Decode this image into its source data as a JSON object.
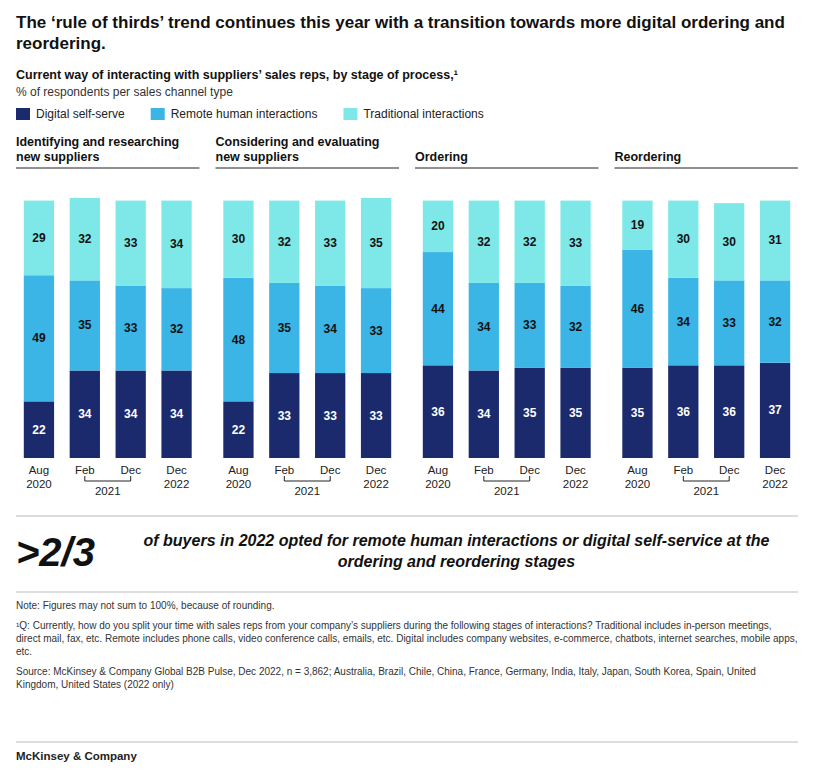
{
  "title": "The ‘rule of thirds’ trend continues this year with a transition towards more digital ordering and reordering.",
  "subtitle": "Current way of interacting with suppliers’ sales reps, by stage of process,¹",
  "annotations": [
    "% of respondents per sales channel type",
    ">2/3",
    "of buyers in 2022 opted for remote human interactions or digital self-service at the ordering and reordering stages",
    "Note: Figures may not sum to 100%, because of rounding.",
    "¹Q: Currently, how do you split your time with sales reps from your company’s suppliers during the following stages of interactions? Traditional includes in-person meetings, direct mail, fax, etc. Remote includes phone calls, video conference calls, emails, etc. Digital includes company websites, e-commerce, chatbots, internet searches, mobile apps, etc.",
    "Source: McKinsey & Company Global B2B Pulse, Dec 2022, n = 3,862; Australia, Brazil, Chile, China, France, Germany, India, Italy, Japan, South Korea, Spain, United Kingdom, United States (2022 only)",
    "McKinsey & Company"
  ],
  "chart_data": [
    {
      "type": "bar",
      "stacked": true,
      "data_labels": true,
      "tick_labels": "x",
      "title": "Identifying and researching new suppliers",
      "categories": [
        "Aug 2020",
        "Feb",
        "Dec",
        "Dec 2022"
      ],
      "annotations": [
        "2021"
      ],
      "ylim": [
        0,
        108
      ],
      "series": [
        {
          "name": "Digital self-serve",
          "color": "#1a2a6c",
          "values": [
            22,
            34,
            34,
            34
          ]
        },
        {
          "name": "Remote human interactions",
          "color": "#3ab5e5",
          "values": [
            49,
            35,
            33,
            32
          ]
        },
        {
          "name": "Traditional interactions",
          "color": "#7ee8e8",
          "values": [
            29,
            32,
            33,
            34
          ]
        }
      ]
    },
    {
      "type": "bar",
      "stacked": true,
      "data_labels": true,
      "tick_labels": "x",
      "title": "Considering and evaluating new suppliers",
      "categories": [
        "Aug 2020",
        "Feb",
        "Dec",
        "Dec 2022"
      ],
      "annotations": [
        "2021"
      ],
      "ylim": [
        0,
        108
      ],
      "series": [
        {
          "name": "Digital self-serve",
          "color": "#1a2a6c",
          "values": [
            22,
            33,
            33,
            33
          ]
        },
        {
          "name": "Remote human interactions",
          "color": "#3ab5e5",
          "values": [
            48,
            35,
            34,
            33
          ]
        },
        {
          "name": "Traditional interactions",
          "color": "#7ee8e8",
          "values": [
            30,
            32,
            33,
            35
          ]
        }
      ]
    },
    {
      "type": "bar",
      "stacked": true,
      "data_labels": true,
      "tick_labels": "x",
      "title": "Ordering",
      "categories": [
        "Aug 2020",
        "Feb",
        "Dec",
        "Dec 2022"
      ],
      "annotations": [
        "2021"
      ],
      "ylim": [
        0,
        108
      ],
      "series": [
        {
          "name": "Digital self-serve",
          "color": "#1a2a6c",
          "values": [
            36,
            34,
            35,
            35
          ]
        },
        {
          "name": "Remote human interactions",
          "color": "#3ab5e5",
          "values": [
            44,
            34,
            33,
            32
          ]
        },
        {
          "name": "Traditional interactions",
          "color": "#7ee8e8",
          "values": [
            20,
            32,
            32,
            33
          ]
        }
      ]
    },
    {
      "type": "bar",
      "stacked": true,
      "data_labels": true,
      "tick_labels": "x",
      "title": "Reordering",
      "categories": [
        "Aug 2020",
        "Feb",
        "Dec",
        "Dec 2022"
      ],
      "annotations": [
        "2021"
      ],
      "ylim": [
        0,
        108
      ],
      "series": [
        {
          "name": "Digital self-serve",
          "color": "#1a2a6c",
          "values": [
            35,
            36,
            36,
            37
          ]
        },
        {
          "name": "Remote human interactions",
          "color": "#3ab5e5",
          "values": [
            46,
            34,
            33,
            32
          ]
        },
        {
          "name": "Traditional interactions",
          "color": "#7ee8e8",
          "values": [
            19,
            30,
            30,
            31
          ]
        }
      ]
    }
  ]
}
